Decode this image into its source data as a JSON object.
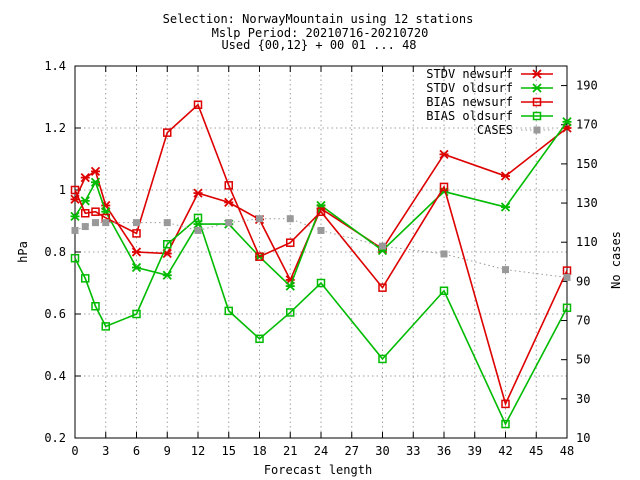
{
  "chart_data": {
    "type": "line",
    "title_lines": [
      "Selection: NorwayMountain using    12 stations",
      "Mslp   Period: 20210716-20210720",
      "Used {00,12} + 00 01 ... 48"
    ],
    "xlabel": "Forecast length",
    "ylabel": "hPa",
    "y2label": "No cases",
    "xlim": [
      0,
      48
    ],
    "ylim": [
      0.2,
      1.4
    ],
    "y2lim": [
      10,
      200
    ],
    "xticks": [
      0,
      3,
      6,
      9,
      12,
      15,
      18,
      21,
      24,
      27,
      30,
      33,
      36,
      39,
      42,
      45,
      48
    ],
    "yticks": [
      0.2,
      0.4,
      0.6,
      0.8,
      1,
      1.2,
      1.4
    ],
    "y2ticks": [
      10,
      30,
      50,
      70,
      90,
      110,
      130,
      150,
      170,
      190
    ],
    "grid": true,
    "legend_position": "top-right",
    "x": [
      0,
      1,
      2,
      3,
      6,
      9,
      12,
      15,
      18,
      21,
      24,
      30,
      36,
      42,
      48
    ],
    "series": [
      {
        "name": "STDV newsurf",
        "color": "#dd0000",
        "marker": "star",
        "axis": "left",
        "values": [
          0.97,
          1.04,
          1.06,
          0.95,
          0.8,
          0.795,
          0.99,
          0.96,
          0.905,
          0.71,
          0.94,
          0.81,
          1.115,
          1.045,
          1.2
        ]
      },
      {
        "name": "STDV oldsurf",
        "color": "#00bb00",
        "marker": "star",
        "axis": "left",
        "values": [
          0.915,
          0.965,
          1.025,
          0.93,
          0.75,
          0.725,
          0.89,
          0.89,
          0.785,
          0.69,
          0.95,
          0.805,
          0.995,
          0.945,
          1.22
        ]
      },
      {
        "name": "BIAS newsurf",
        "color": "#dd0000",
        "marker": "square",
        "axis": "left",
        "values": [
          1.0,
          0.925,
          0.93,
          0.91,
          0.86,
          1.185,
          1.275,
          1.015,
          0.785,
          0.83,
          0.93,
          0.685,
          1.01,
          0.31,
          0.74
        ]
      },
      {
        "name": "BIAS oldsurf",
        "color": "#00bb00",
        "marker": "square",
        "axis": "left",
        "values": [
          0.78,
          0.715,
          0.625,
          0.56,
          0.6,
          0.825,
          0.91,
          0.61,
          0.52,
          0.605,
          0.7,
          0.455,
          0.675,
          0.245,
          0.62
        ]
      },
      {
        "name": "CASES",
        "color": "#999999",
        "marker": "square",
        "axis": "right",
        "values": [
          116,
          118,
          120,
          120,
          120,
          120,
          116,
          120,
          122,
          122,
          116,
          108,
          104,
          96,
          92
        ]
      }
    ]
  }
}
